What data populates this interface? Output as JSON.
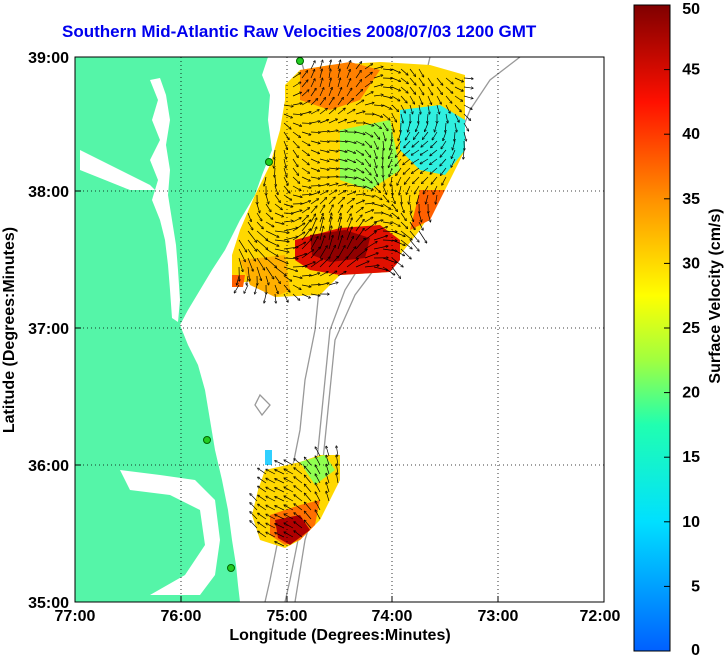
{
  "title": "Southern Mid-Atlantic Raw Velocities 2008/07/03 1200 GMT",
  "x_axis": {
    "label": "Longitude (Degrees:Minutes)",
    "ticks": [
      "77:00",
      "76:00",
      "75:00",
      "74:00",
      "73:00",
      "72:00"
    ]
  },
  "y_axis": {
    "label": "Latitude (Degrees:Minutes)",
    "ticks": [
      "39:00",
      "38:00",
      "37:00",
      "36:00",
      "35:00"
    ]
  },
  "colorbar": {
    "label": "Surface Velocity (cm/s)",
    "ticks": [
      "0",
      "5",
      "10",
      "15",
      "20",
      "25",
      "30",
      "35",
      "40",
      "45",
      "50"
    ],
    "min": 0,
    "max": 50
  },
  "colors": {
    "land": "#55f5a8",
    "title": "#0000ee",
    "station": "#22cc22"
  }
}
